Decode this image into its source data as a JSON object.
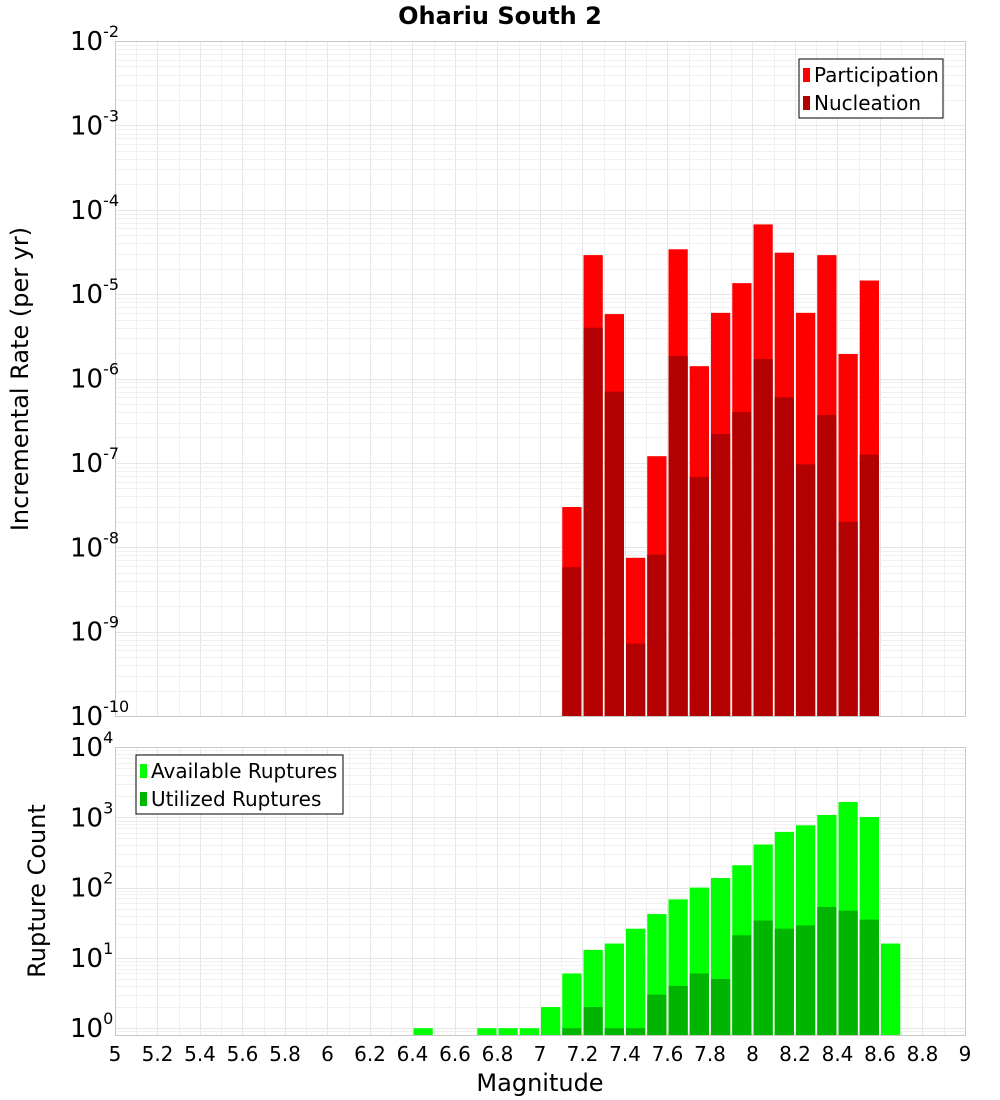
{
  "chart_data": [
    {
      "type": "bar",
      "title": "Ohariu South 2",
      "xlabel": "",
      "ylabel": "Incremental Rate (per yr)",
      "xlim": [
        5,
        9
      ],
      "ylim": [
        1e-10,
        0.01
      ],
      "yscale": "log",
      "grid": true,
      "legend": "top-right",
      "xticks": [
        "5",
        "5.2",
        "5.4",
        "5.6",
        "5.8",
        "6",
        "6.2",
        "6.4",
        "6.6",
        "6.8",
        "7",
        "7.2",
        "7.4",
        "7.6",
        "7.8",
        "8",
        "8.2",
        "8.4",
        "8.6",
        "8.8",
        "9"
      ],
      "yticks": [
        {
          "base": "10",
          "exp": "-2"
        },
        {
          "base": "10",
          "exp": "-3"
        },
        {
          "base": "10",
          "exp": "-4"
        },
        {
          "base": "10",
          "exp": "-5"
        },
        {
          "base": "10",
          "exp": "-6"
        },
        {
          "base": "10",
          "exp": "-7"
        },
        {
          "base": "10",
          "exp": "-8"
        },
        {
          "base": "10",
          "exp": "-9"
        },
        {
          "base": "10",
          "exp": "-10"
        }
      ],
      "bin_width": 0.1,
      "x": [
        7.15,
        7.25,
        7.35,
        7.45,
        7.55,
        7.65,
        7.75,
        7.85,
        7.95,
        8.05,
        8.15,
        8.25,
        8.35,
        8.45,
        8.55
      ],
      "series": [
        {
          "name": "Participation",
          "color": "#ff0000",
          "values": [
            3e-08,
            2.9e-05,
            5.8e-06,
            7.5e-09,
            1.2e-07,
            3.4e-05,
            1.4e-06,
            6e-06,
            1.35e-05,
            6.7e-05,
            3.1e-05,
            6e-06,
            2.9e-05,
            1.95e-06,
            1.45e-05
          ]
        },
        {
          "name": "Nucleation",
          "color": "#b30000",
          "values": [
            5.8e-09,
            4e-06,
            7e-07,
            7.2e-10,
            8.2e-09,
            1.85e-06,
            6.8e-08,
            2.2e-07,
            4e-07,
            1.7e-06,
            6e-07,
            9.6e-08,
            3.7e-07,
            2e-08,
            1.25e-07
          ]
        }
      ]
    },
    {
      "type": "bar",
      "title": "",
      "xlabel": "Magnitude",
      "ylabel": "Rupture Count",
      "xlim": [
        5,
        9
      ],
      "ylim": [
        0.8,
        10000
      ],
      "yscale": "log",
      "grid": true,
      "legend": "top-left",
      "yticks": [
        {
          "base": "10",
          "exp": "4"
        },
        {
          "base": "10",
          "exp": "3"
        },
        {
          "base": "10",
          "exp": "2"
        },
        {
          "base": "10",
          "exp": "1"
        },
        {
          "base": "10",
          "exp": "0"
        }
      ],
      "bin_width": 0.1,
      "series": [
        {
          "name": "Available Ruptures",
          "color": "#00ff00",
          "x": [
            6.45,
            6.75,
            6.85,
            6.95,
            7.05,
            7.15,
            7.25,
            7.35,
            7.45,
            7.55,
            7.65,
            7.75,
            7.85,
            7.95,
            8.05,
            8.15,
            8.25,
            8.35,
            8.45,
            8.55,
            8.65
          ],
          "values": [
            1,
            1,
            1,
            1,
            2,
            6,
            13,
            16,
            26,
            42,
            68,
            100,
            137,
            208,
            410,
            620,
            770,
            1080,
            1650,
            1010,
            16
          ]
        },
        {
          "name": "Utilized Ruptures",
          "color": "#00b400",
          "x": [
            7.15,
            7.25,
            7.35,
            7.45,
            7.55,
            7.65,
            7.75,
            7.85,
            7.95,
            8.05,
            8.15,
            8.25,
            8.35,
            8.45,
            8.55
          ],
          "values": [
            1,
            2,
            1,
            1,
            3,
            4,
            6,
            5,
            21,
            34,
            26,
            29,
            53,
            47,
            35
          ]
        }
      ]
    }
  ]
}
